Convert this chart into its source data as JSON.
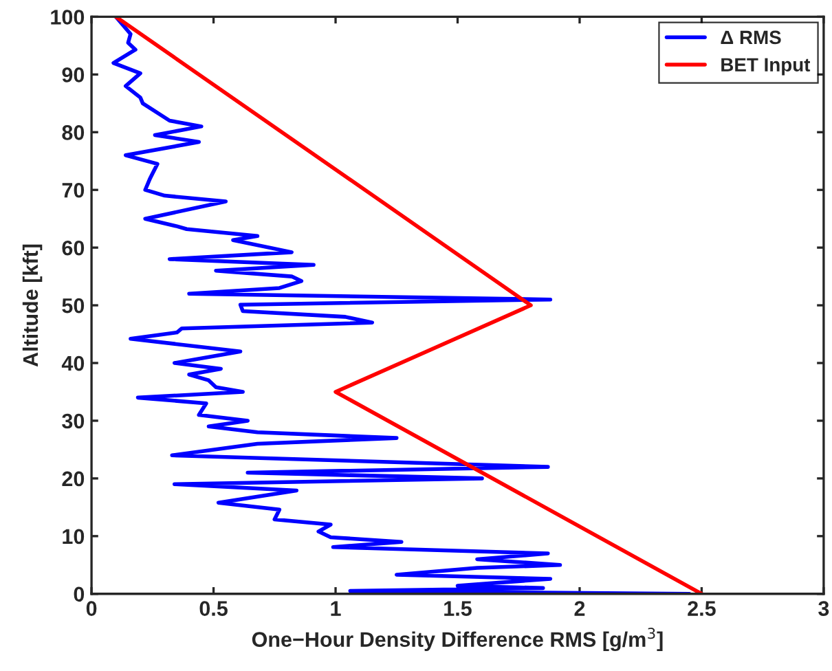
{
  "chart_data": {
    "type": "line",
    "orientation": "horizontal",
    "xlabel": "One−Hour Density Difference RMS [g/m$^{3}$]",
    "ylabel": "Altitude [kft]",
    "xlim": [
      0,
      3
    ],
    "xticks": [
      0,
      0.5,
      1,
      1.5,
      2,
      2.5,
      3
    ],
    "ylim": [
      0,
      100
    ],
    "yticks": [
      0,
      10,
      20,
      30,
      40,
      50,
      60,
      70,
      80,
      90,
      100
    ],
    "grid": false,
    "legend": "top right",
    "line_style": "solid",
    "marker": "none",
    "series": [
      {
        "name": "Δ RMS",
        "color": "#0000ff",
        "x": [
          100,
          97,
          95.5,
          94.3,
          92,
          90.2,
          88,
          86,
          85,
          82,
          81,
          79.5,
          78.3,
          76,
          74.5,
          72,
          70,
          69,
          68,
          65,
          63.7,
          63.2,
          62,
          61.3,
          59.2,
          58,
          57,
          56,
          55,
          54.2,
          53,
          52,
          51,
          50.1,
          49,
          48,
          47,
          46,
          45.3,
          44.2,
          42,
          40,
          39,
          38,
          37,
          35.8,
          35,
          34,
          33,
          31,
          30,
          29,
          28,
          27,
          26,
          24,
          22,
          21,
          20,
          19,
          17.9,
          15.8,
          14.6,
          12.9,
          12,
          10.8,
          9.8,
          9,
          8.1,
          7,
          6,
          5,
          4.5,
          3.3,
          2.6,
          1.4,
          1,
          0.5,
          0
        ],
        "values": [
          0.1,
          0.16,
          0.15,
          0.18,
          0.09,
          0.2,
          0.14,
          0.2,
          0.21,
          0.32,
          0.45,
          0.26,
          0.44,
          0.14,
          0.27,
          0.24,
          0.22,
          0.3,
          0.55,
          0.22,
          0.35,
          0.39,
          0.68,
          0.58,
          0.82,
          0.32,
          0.91,
          0.51,
          0.82,
          0.86,
          0.77,
          0.4,
          1.88,
          0.61,
          0.62,
          1.04,
          1.15,
          0.37,
          0.35,
          0.16,
          0.61,
          0.34,
          0.53,
          0.4,
          0.48,
          0.51,
          0.62,
          0.19,
          0.47,
          0.44,
          0.64,
          0.48,
          0.68,
          1.25,
          0.68,
          0.33,
          1.87,
          0.64,
          1.6,
          0.34,
          0.84,
          0.52,
          0.77,
          0.75,
          0.98,
          0.93,
          0.98,
          1.27,
          0.99,
          1.87,
          1.58,
          1.92,
          1.58,
          1.25,
          1.88,
          1.5,
          1.85,
          1.06,
          2.45
        ]
      },
      {
        "name": "BET Input",
        "color": "#ff0000",
        "x": [
          100,
          50,
          35,
          0
        ],
        "values": [
          0.1,
          1.8,
          1.0,
          2.5
        ]
      }
    ]
  }
}
